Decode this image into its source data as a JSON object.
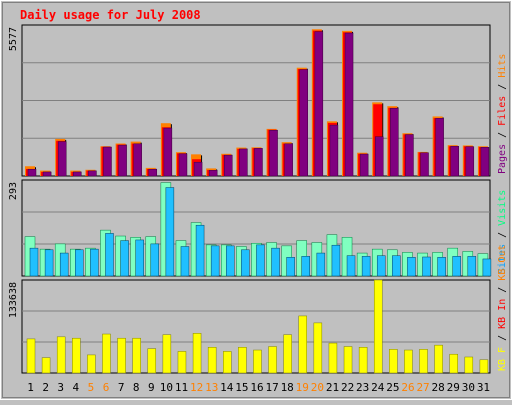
{
  "title": "Daily usage for July 2008",
  "colors": {
    "background": "#c0c0c0",
    "plot_bg": "#c0c0c0",
    "title": "#ff0000",
    "hits": "#ff8000",
    "files": "#ff0000",
    "pages": "#800080",
    "visits": "#00ff80",
    "sites": "#00a0ff",
    "visits_fill": "#80ffc0",
    "sites_fill": "#20c0ff",
    "kbf": "#ffff00",
    "kbin": "#ff0000",
    "kbout": "#ff8000",
    "weekend_label": "#ff8000",
    "weekday_label": "#000080"
  },
  "chart_data": [
    {
      "type": "bar",
      "name": "traffic",
      "ymax_label": "5577",
      "ylim": [
        0,
        5577
      ],
      "legend": [
        {
          "text": "Pages",
          "color": "#800080"
        },
        {
          "text": "Files",
          "color": "#ff0000"
        },
        {
          "text": "Hits",
          "color": "#ff8000"
        }
      ],
      "series": [
        {
          "name": "Hits",
          "values": [
            360,
            200,
            1370,
            200,
            230,
            1100,
            1200,
            1270,
            300,
            1950,
            880,
            800,
            280,
            820,
            1050,
            1060,
            1740,
            1250,
            4000,
            5420,
            2020,
            5360,
            860,
            2720,
            2580,
            1580,
            890,
            2200,
            1140,
            1130,
            1100
          ]
        },
        {
          "name": "Files",
          "values": [
            260,
            150,
            1300,
            150,
            200,
            1080,
            1160,
            1200,
            260,
            1800,
            840,
            620,
            220,
            780,
            1000,
            1030,
            1710,
            1200,
            3950,
            5370,
            1960,
            5310,
            820,
            2650,
            2520,
            1540,
            870,
            2140,
            1100,
            1100,
            1070
          ]
        },
        {
          "name": "Pages",
          "values": [
            250,
            150,
            1270,
            150,
            190,
            1070,
            1140,
            1190,
            250,
            1770,
            820,
            510,
            210,
            770,
            1000,
            1020,
            1690,
            1190,
            3930,
            5330,
            1880,
            5280,
            810,
            1450,
            2500,
            1530,
            860,
            2130,
            1100,
            1080,
            1060
          ]
        }
      ]
    },
    {
      "type": "bar",
      "name": "visitors",
      "ymax_label": "293",
      "ylim": [
        0,
        293
      ],
      "legend": [
        {
          "text": "Sites",
          "color": "#00a0ff"
        },
        {
          "text": "Visits",
          "color": "#00ff80"
        }
      ],
      "series": [
        {
          "name": "Visits",
          "values": [
            120,
            82,
            98,
            82,
            85,
            140,
            122,
            118,
            120,
            285,
            108,
            163,
            95,
            95,
            90,
            100,
            102,
            92,
            108,
            102,
            126,
            118,
            70,
            82,
            80,
            72,
            70,
            72,
            85,
            75,
            68
          ]
        },
        {
          "name": "Sites",
          "values": [
            85,
            80,
            70,
            80,
            82,
            130,
            108,
            110,
            98,
            270,
            90,
            155,
            92,
            92,
            80,
            95,
            85,
            57,
            60,
            70,
            94,
            62,
            60,
            62,
            62,
            57,
            58,
            57,
            60,
            60,
            52
          ]
        }
      ]
    },
    {
      "type": "bar",
      "name": "volume",
      "ymax_label": "133638",
      "ylim": [
        0,
        133638
      ],
      "legend": [
        {
          "text": "KB F",
          "color": "#ffff00"
        },
        {
          "text": "KB In",
          "color": "#ff0000"
        },
        {
          "text": "KB Out",
          "color": "#ff8000"
        }
      ],
      "series": [
        {
          "name": "KB F",
          "values": [
            49000,
            22000,
            52000,
            50000,
            26000,
            56000,
            50000,
            50000,
            35000,
            55000,
            31000,
            57000,
            37000,
            31000,
            37000,
            33000,
            38000,
            55000,
            82000,
            72000,
            43000,
            38000,
            37000,
            133638,
            34000,
            33000,
            34000,
            40000,
            27000,
            23000,
            19000
          ]
        }
      ]
    }
  ],
  "x_labels": [
    "1",
    "2",
    "3",
    "4",
    "5",
    "6",
    "7",
    "8",
    "9",
    "10",
    "11",
    "12",
    "13",
    "14",
    "15",
    "16",
    "17",
    "18",
    "19",
    "20",
    "21",
    "22",
    "23",
    "24",
    "25",
    "26",
    "27",
    "28",
    "29",
    "30",
    "31"
  ],
  "weekend_days": [
    5,
    6,
    12,
    13,
    19,
    20,
    26,
    27
  ]
}
